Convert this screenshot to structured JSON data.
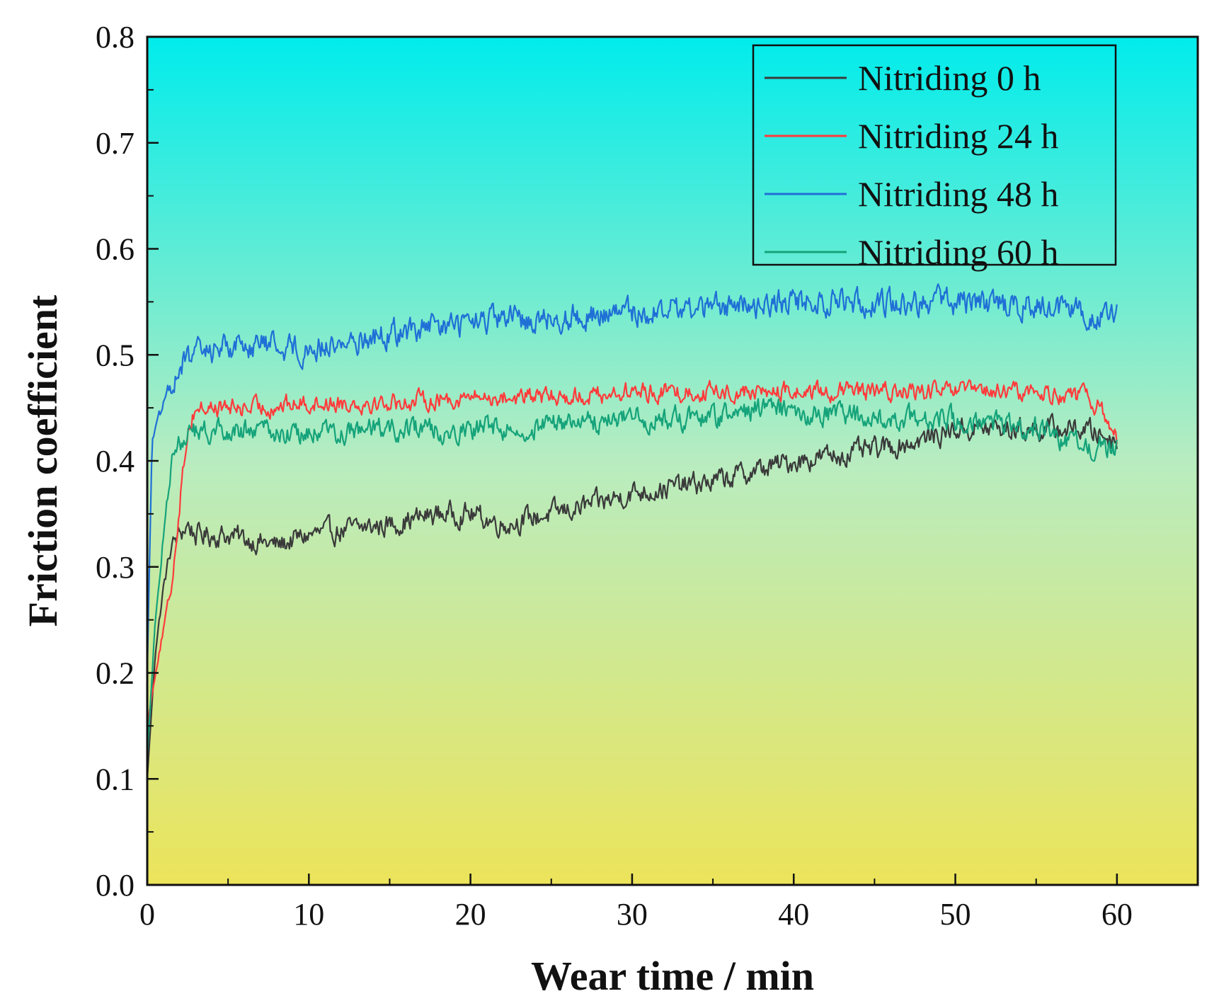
{
  "chart_data": {
    "type": "line",
    "title": "",
    "xlabel": "Wear time / min",
    "ylabel": "Friction coefficient",
    "xlim": [
      0,
      65
    ],
    "ylim": [
      0.0,
      0.8
    ],
    "xticks": [
      0,
      10,
      20,
      30,
      40,
      50,
      60
    ],
    "xtick_labels": [
      "0",
      "10",
      "20",
      "30",
      "40",
      "50",
      "60"
    ],
    "yticks": [
      0.0,
      0.1,
      0.2,
      0.3,
      0.4,
      0.5,
      0.6,
      0.7,
      0.8
    ],
    "ytick_labels": [
      "0.0",
      "0.1",
      "0.2",
      "0.3",
      "0.4",
      "0.5",
      "0.6",
      "0.7",
      "0.8"
    ],
    "grid": false,
    "legend_position": "top-right",
    "background_gradient": {
      "top": "#00ecec",
      "middle": "#b8ecc0",
      "bottom": "#ece45a"
    },
    "series": [
      {
        "name": "Nitriding 0 h",
        "color": "#3a3a3a",
        "noise": 0.012,
        "x": [
          0,
          0.5,
          1,
          1.5,
          2,
          2.5,
          3,
          5,
          8,
          10,
          15,
          18,
          20,
          22,
          25,
          28,
          30,
          35,
          40,
          45,
          48,
          50,
          52,
          55,
          58,
          60
        ],
        "values": [
          0.1,
          0.22,
          0.28,
          0.32,
          0.33,
          0.34,
          0.33,
          0.33,
          0.32,
          0.33,
          0.34,
          0.35,
          0.35,
          0.34,
          0.35,
          0.36,
          0.37,
          0.38,
          0.4,
          0.41,
          0.42,
          0.43,
          0.43,
          0.43,
          0.43,
          0.42
        ]
      },
      {
        "name": "Nitriding 24 h",
        "color": "#ff3b3b",
        "noise": 0.01,
        "x": [
          0,
          0.5,
          1,
          1.5,
          2,
          2.5,
          3,
          5,
          7,
          10,
          15,
          20,
          25,
          30,
          35,
          40,
          45,
          50,
          55,
          58,
          59,
          60
        ],
        "values": [
          0.15,
          0.2,
          0.24,
          0.28,
          0.36,
          0.43,
          0.45,
          0.45,
          0.45,
          0.455,
          0.455,
          0.46,
          0.46,
          0.465,
          0.465,
          0.465,
          0.465,
          0.465,
          0.465,
          0.46,
          0.45,
          0.42
        ]
      },
      {
        "name": "Nitriding 48 h",
        "color": "#1f6fd6",
        "noise": 0.014,
        "x": [
          0,
          0.3,
          0.7,
          1,
          2,
          3,
          5,
          8,
          10,
          15,
          20,
          25,
          30,
          35,
          40,
          45,
          50,
          55,
          58,
          60
        ],
        "values": [
          0.2,
          0.42,
          0.44,
          0.45,
          0.49,
          0.5,
          0.51,
          0.51,
          0.505,
          0.52,
          0.53,
          0.535,
          0.54,
          0.545,
          0.55,
          0.55,
          0.55,
          0.545,
          0.54,
          0.535
        ]
      },
      {
        "name": "Nitriding 60 h",
        "color": "#15a37a",
        "noise": 0.012,
        "x": [
          0,
          0.5,
          1,
          1.5,
          2,
          3,
          5,
          10,
          15,
          20,
          25,
          30,
          35,
          38,
          40,
          45,
          50,
          55,
          57,
          60
        ],
        "values": [
          0.12,
          0.25,
          0.33,
          0.4,
          0.42,
          0.425,
          0.43,
          0.425,
          0.43,
          0.43,
          0.435,
          0.44,
          0.44,
          0.45,
          0.445,
          0.44,
          0.44,
          0.43,
          0.42,
          0.41
        ]
      }
    ]
  }
}
